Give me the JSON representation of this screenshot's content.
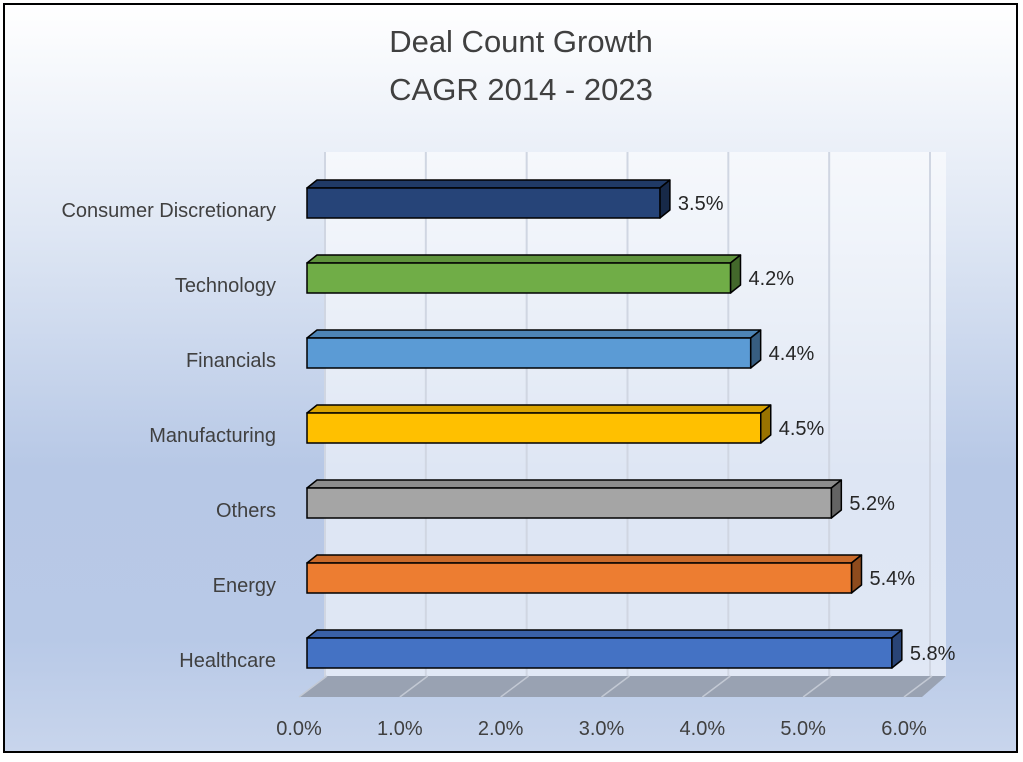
{
  "chart_data": {
    "type": "bar",
    "orientation": "horizontal",
    "title": [
      "Deal Count Growth",
      "CAGR 2014 - 2023"
    ],
    "categories": [
      "Consumer Discretionary",
      "Technology",
      "Financials",
      "Manufacturing",
      "Others",
      "Energy",
      "Healthcare"
    ],
    "values": [
      3.5,
      4.2,
      4.4,
      4.5,
      5.2,
      5.4,
      5.8
    ],
    "data_labels": [
      "3.5%",
      "4.2%",
      "4.4%",
      "4.5%",
      "5.2%",
      "5.4%",
      "5.8%"
    ],
    "colors": [
      "#264478",
      "#70AD47",
      "#5B9BD5",
      "#FFC000",
      "#A5A5A5",
      "#ED7D31",
      "#4472C4"
    ],
    "xlim": [
      0,
      6
    ],
    "x_ticks": [
      "0.0%",
      "1.0%",
      "2.0%",
      "3.0%",
      "4.0%",
      "5.0%",
      "6.0%"
    ],
    "grid": true,
    "style": "3d",
    "legend": "none"
  }
}
